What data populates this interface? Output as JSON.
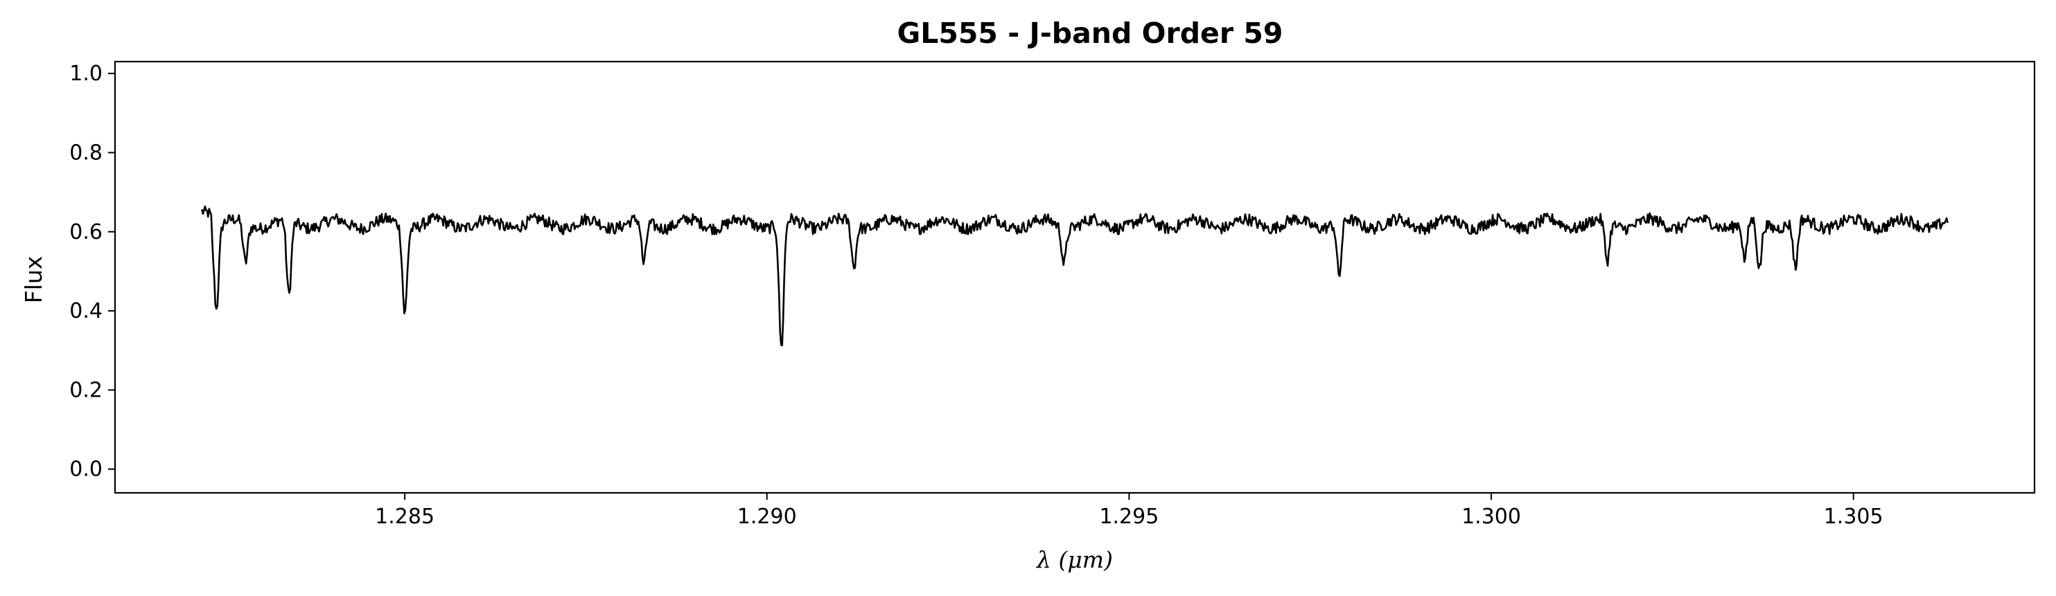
{
  "chart_data": {
    "type": "line",
    "title": "GL555 - J-band Order 59",
    "xlabel": "λ (μm)",
    "ylabel": "Flux",
    "xlim": [
      1.281,
      1.3075
    ],
    "ylim": [
      -0.06,
      1.03
    ],
    "xticks": [
      1.285,
      1.29,
      1.295,
      1.3,
      1.305
    ],
    "xtick_labels": [
      "1.285",
      "1.290",
      "1.295",
      "1.300",
      "1.305"
    ],
    "yticks": [
      0.0,
      0.2,
      0.4,
      0.6,
      0.8,
      1.0
    ],
    "ytick_labels": [
      "0.0",
      "0.2",
      "0.4",
      "0.6",
      "0.8",
      "1.0"
    ],
    "grid": false,
    "series": [
      {
        "color": "#000000",
        "continuum": 0.62,
        "x_range": [
          1.2822,
          1.3063
        ],
        "absorption_lines": [
          {
            "x": 1.2824,
            "y": 0.41
          },
          {
            "x": 1.2828,
            "y": 0.52
          },
          {
            "x": 1.2834,
            "y": 0.43
          },
          {
            "x": 1.285,
            "y": 0.4
          },
          {
            "x": 1.2883,
            "y": 0.51
          },
          {
            "x": 1.2902,
            "y": 0.3
          },
          {
            "x": 1.2912,
            "y": 0.51
          },
          {
            "x": 1.2941,
            "y": 0.53
          },
          {
            "x": 1.2979,
            "y": 0.48
          },
          {
            "x": 1.3016,
            "y": 0.52
          },
          {
            "x": 1.3035,
            "y": 0.52
          },
          {
            "x": 1.3037,
            "y": 0.5
          },
          {
            "x": 1.3042,
            "y": 0.5
          }
        ]
      }
    ]
  }
}
